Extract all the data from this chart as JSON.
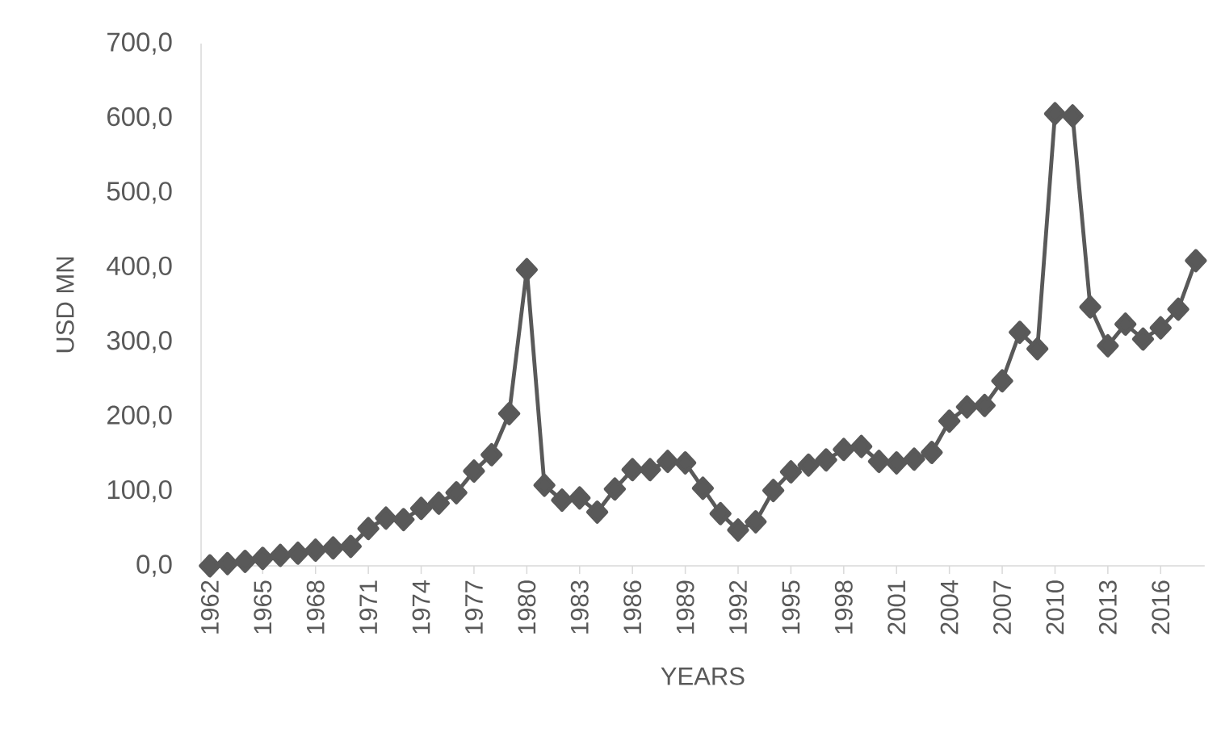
{
  "chart_data": {
    "type": "line",
    "xlabel": "YEARS",
    "ylabel": "USD MN",
    "x": [
      1962,
      1963,
      1964,
      1965,
      1966,
      1967,
      1968,
      1969,
      1970,
      1971,
      1972,
      1973,
      1974,
      1975,
      1976,
      1977,
      1978,
      1979,
      1980,
      1981,
      1982,
      1983,
      1984,
      1985,
      1986,
      1987,
      1988,
      1989,
      1990,
      1991,
      1992,
      1993,
      1994,
      1995,
      1996,
      1997,
      1998,
      1999,
      2000,
      2001,
      2002,
      2003,
      2004,
      2005,
      2006,
      2007,
      2008,
      2009,
      2010,
      2011,
      2012,
      2013,
      2014,
      2015,
      2016,
      2017,
      2018
    ],
    "series": [
      {
        "color": "#595959",
        "values": [
          0,
          3,
          6,
          10,
          14,
          17,
          21,
          24,
          26,
          50,
          64,
          62,
          77,
          84,
          98,
          127,
          149,
          204,
          397,
          108,
          88,
          91,
          72,
          103,
          129,
          129,
          140,
          138,
          104,
          70,
          48,
          59,
          101,
          126,
          135,
          142,
          156,
          160,
          140,
          138,
          143,
          152,
          194,
          213,
          215,
          248,
          313,
          291,
          606,
          603,
          347,
          295,
          324,
          304,
          319,
          344,
          409
        ]
      }
    ],
    "xlim": [
      1961.5,
      2018.5
    ],
    "xticks": [
      1962,
      1965,
      1968,
      1971,
      1974,
      1977,
      1980,
      1983,
      1986,
      1989,
      1992,
      1995,
      1998,
      2001,
      2004,
      2007,
      2010,
      2013,
      2016
    ],
    "ylim": [
      0,
      700
    ],
    "yticks": [
      {
        "value": 0,
        "label": "0,0"
      },
      {
        "value": 100,
        "label": "100,0"
      },
      {
        "value": 200,
        "label": "200,0"
      },
      {
        "value": 300,
        "label": "300,0"
      },
      {
        "value": 400,
        "label": "400,0"
      },
      {
        "value": 500,
        "label": "500,0"
      },
      {
        "value": 600,
        "label": "600,0"
      },
      {
        "value": 700,
        "label": "700,0"
      }
    ],
    "marker": "diamond",
    "line_style": "solid"
  }
}
